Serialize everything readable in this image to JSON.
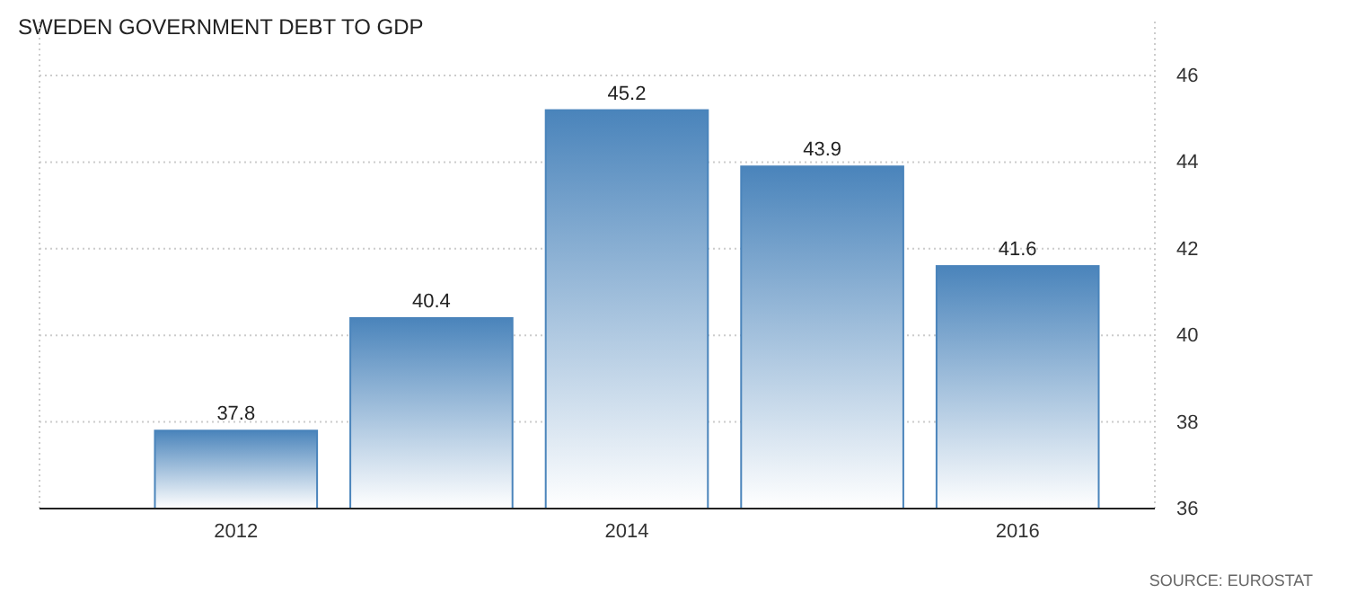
{
  "chart_data": {
    "type": "bar",
    "title": "SWEDEN GOVERNMENT DEBT TO GDP",
    "categories": [
      "2012",
      null,
      "2014",
      null,
      "2016"
    ],
    "values": [
      37.8,
      40.4,
      45.2,
      43.9,
      41.6
    ],
    "color": "#4a84bb",
    "ylim": [
      36,
      46
    ],
    "yticks": [
      36,
      38,
      40,
      42,
      44,
      46
    ],
    "grid": "y",
    "data_labels": true,
    "annotations": [
      "SOURCE: EUROSTAT"
    ]
  }
}
